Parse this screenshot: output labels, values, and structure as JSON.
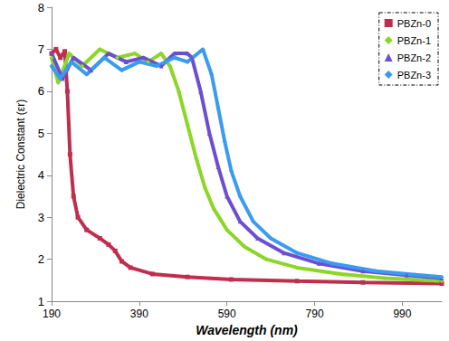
{
  "chart_data": {
    "type": "line",
    "x_label": "Wavelength (nm)",
    "y_label": "Dielectric Constant (εr)",
    "xlim": [
      190,
      1080
    ],
    "xticks": [
      190,
      390,
      590,
      790,
      990
    ],
    "ylim": [
      1,
      8
    ],
    "yticks": [
      1,
      2,
      3,
      4,
      5,
      6,
      7,
      8
    ],
    "grid": false,
    "legend": "top-right",
    "series": [
      {
        "name": "PBZn-0",
        "color": "#be2f4e",
        "marker": "square",
        "x": [
          190,
          200,
          210,
          220,
          226,
          232,
          240,
          250,
          270,
          300,
          320,
          335,
          350,
          370,
          420,
          500,
          600,
          750,
          900,
          1080
        ],
        "values": [
          6.9,
          7.0,
          6.8,
          6.95,
          6.0,
          4.5,
          3.5,
          3.0,
          2.7,
          2.5,
          2.35,
          2.2,
          1.95,
          1.8,
          1.65,
          1.58,
          1.52,
          1.48,
          1.45,
          1.42
        ]
      },
      {
        "name": "PBZn-1",
        "color": "#8cd628",
        "marker": "diamond",
        "x": [
          190,
          205,
          230,
          260,
          300,
          340,
          380,
          410,
          440,
          460,
          480,
          500,
          520,
          540,
          560,
          590,
          630,
          680,
          750,
          850,
          950,
          1080
        ],
        "values": [
          6.8,
          6.2,
          6.9,
          6.6,
          7.0,
          6.8,
          6.9,
          6.7,
          6.9,
          6.6,
          6.0,
          5.2,
          4.4,
          3.7,
          3.2,
          2.7,
          2.3,
          2.0,
          1.8,
          1.65,
          1.55,
          1.48
        ]
      },
      {
        "name": "PBZn-2",
        "color": "#6b4fd0",
        "marker": "triangle",
        "x": [
          190,
          215,
          240,
          280,
          320,
          360,
          400,
          440,
          470,
          500,
          510,
          530,
          550,
          570,
          590,
          620,
          660,
          720,
          800,
          900,
          1000,
          1080
        ],
        "values": [
          6.9,
          6.3,
          6.8,
          6.5,
          6.9,
          6.7,
          6.8,
          6.6,
          6.9,
          6.9,
          6.8,
          6.0,
          5.0,
          4.2,
          3.5,
          2.9,
          2.5,
          2.15,
          1.9,
          1.72,
          1.62,
          1.55
        ]
      },
      {
        "name": "PBZn-3",
        "color": "#3a9bf0",
        "marker": "diamond",
        "x": [
          190,
          210,
          235,
          270,
          310,
          350,
          390,
          430,
          470,
          500,
          535,
          555,
          570,
          585,
          600,
          620,
          650,
          690,
          750,
          830,
          930,
          1020,
          1080
        ],
        "values": [
          6.6,
          6.3,
          6.7,
          6.4,
          6.8,
          6.5,
          6.7,
          6.6,
          6.8,
          6.7,
          7.0,
          6.4,
          5.6,
          4.8,
          4.1,
          3.5,
          2.9,
          2.5,
          2.15,
          1.9,
          1.72,
          1.63,
          1.58
        ]
      }
    ]
  }
}
